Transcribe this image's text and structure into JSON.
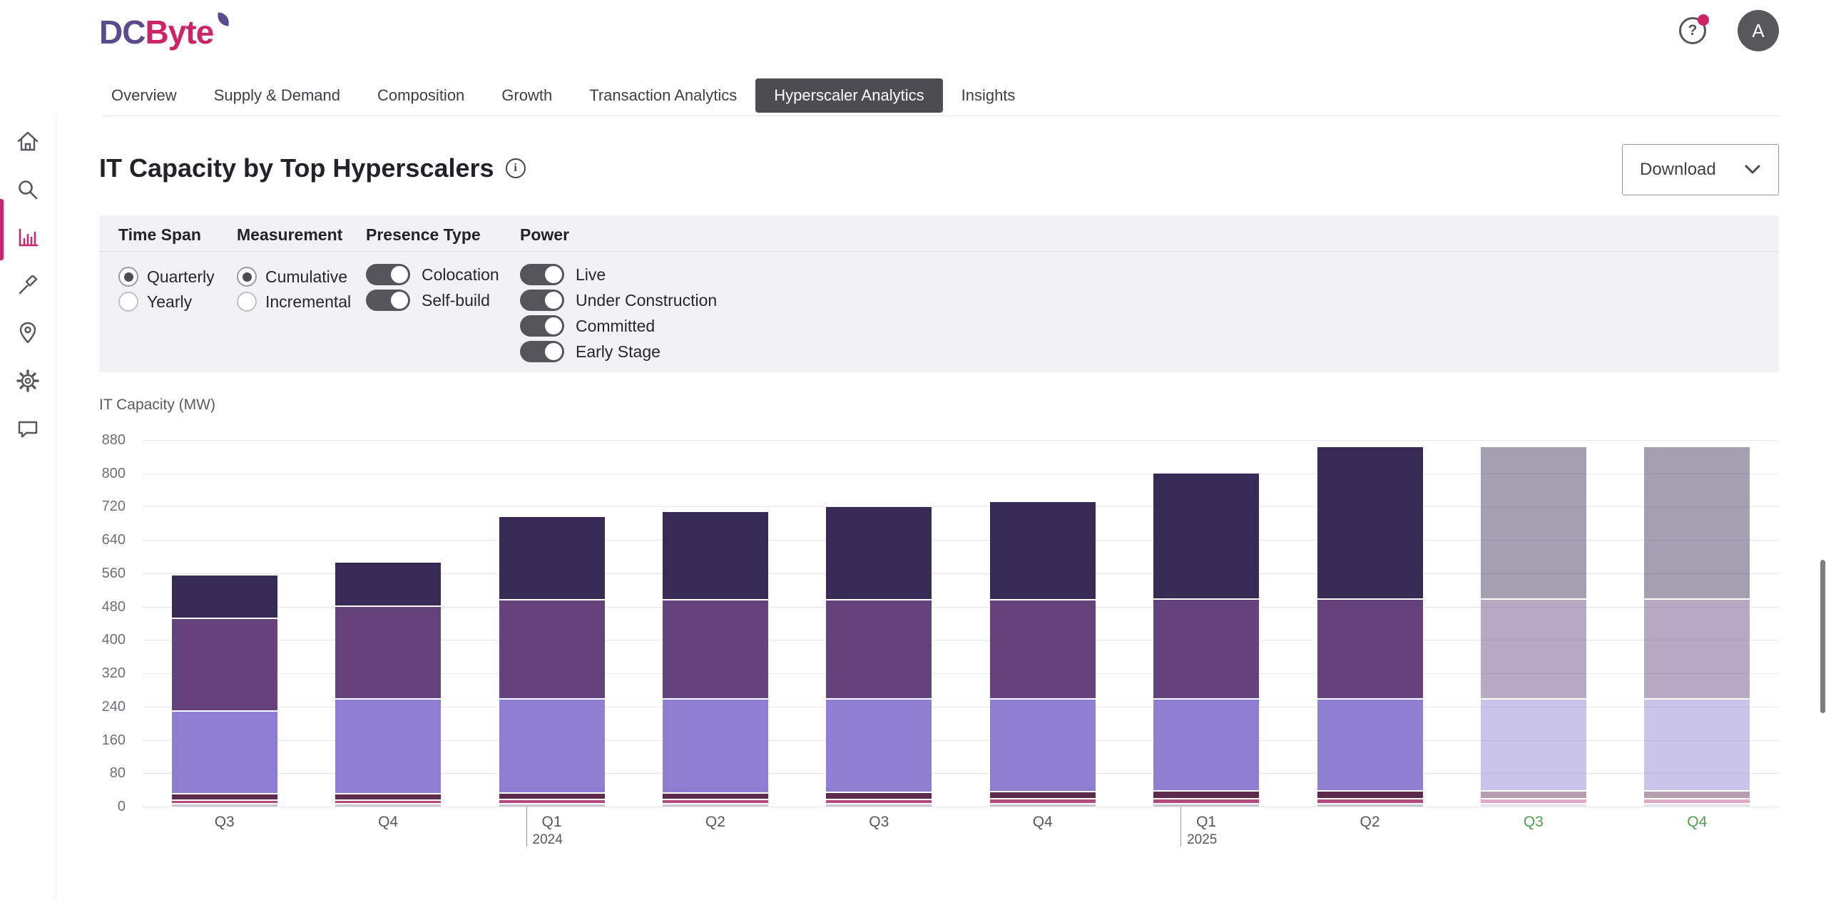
{
  "brand": {
    "dc": "DC",
    "byte": "Byte",
    "dc_color": "#5b4a8c",
    "accent_color": "#cf2368"
  },
  "header": {
    "help_icon": "?",
    "avatar_initial": "A"
  },
  "sidebar": {
    "active_color": "#c22a6c",
    "items": [
      {
        "icon": "home-icon",
        "active": false
      },
      {
        "icon": "search-icon",
        "active": false
      },
      {
        "icon": "bar-chart-icon",
        "active": true
      },
      {
        "icon": "hammer-icon",
        "active": false
      },
      {
        "icon": "map-pin-icon",
        "active": false
      },
      {
        "icon": "gear-icon",
        "active": false
      },
      {
        "icon": "chat-icon",
        "active": false
      }
    ]
  },
  "nav": {
    "tabs": [
      {
        "label": "Overview",
        "active": false
      },
      {
        "label": "Supply & Demand",
        "active": false
      },
      {
        "label": "Composition",
        "active": false
      },
      {
        "label": "Growth",
        "active": false
      },
      {
        "label": "Transaction Analytics",
        "active": false
      },
      {
        "label": "Hyperscaler Analytics",
        "active": true
      },
      {
        "label": "Insights",
        "active": false
      }
    ]
  },
  "page": {
    "title": "IT Capacity by Top Hyperscalers",
    "info_icon": "i",
    "download_label": "Download"
  },
  "filters": {
    "groups": [
      {
        "label": "Time Span",
        "type": "radio",
        "options": [
          {
            "label": "Quarterly",
            "selected": true
          },
          {
            "label": "Yearly",
            "selected": false
          }
        ]
      },
      {
        "label": "Measurement",
        "type": "radio",
        "options": [
          {
            "label": "Cumulative",
            "selected": true
          },
          {
            "label": "Incremental",
            "selected": false
          }
        ]
      },
      {
        "label": "Presence Type",
        "type": "toggle",
        "options": [
          {
            "label": "Colocation",
            "on": true
          },
          {
            "label": "Self-build",
            "on": true
          }
        ]
      },
      {
        "label": "Power",
        "type": "toggle",
        "options": [
          {
            "label": "Live",
            "on": true
          },
          {
            "label": "Under Construction",
            "on": true
          },
          {
            "label": "Committed",
            "on": true
          },
          {
            "label": "Early Stage",
            "on": true
          }
        ]
      }
    ]
  },
  "chart_data": {
    "type": "bar",
    "stacked": true,
    "title": "IT Capacity by Top Hyperscalers",
    "ylabel": "IT Capacity (MW)",
    "ylim": [
      0,
      880
    ],
    "ytick_interval": 80,
    "yticks": [
      880,
      800,
      720,
      640,
      560,
      480,
      400,
      320,
      240,
      160,
      80,
      0
    ],
    "grid": true,
    "legend": false,
    "categories": [
      "Q3",
      "Q4",
      "Q1",
      "Q2",
      "Q3",
      "Q4",
      "Q1",
      "Q2",
      "Q3",
      "Q4"
    ],
    "year_markers": [
      {
        "index": 2,
        "year": "2024"
      },
      {
        "index": 6,
        "year": "2025"
      }
    ],
    "forecast_start_index": 8,
    "forecast_label_color": "#4ca04f",
    "series": [
      {
        "name": "segment-1",
        "color": "#c9c5cf",
        "values": [
          8,
          8,
          8,
          8,
          8,
          8,
          8,
          8,
          8,
          8
        ]
      },
      {
        "name": "segment-2",
        "color": "#b44a7e",
        "values": [
          10,
          10,
          11,
          11,
          11,
          12,
          12,
          12,
          12,
          12
        ]
      },
      {
        "name": "segment-3",
        "color": "#5e2b4f",
        "values": [
          15,
          15,
          16,
          16,
          17,
          17,
          19,
          19,
          19,
          19
        ]
      },
      {
        "name": "segment-4",
        "color": "#8d7ed2",
        "values": [
          198,
          228,
          226,
          226,
          225,
          224,
          222,
          222,
          222,
          222
        ]
      },
      {
        "name": "segment-5",
        "color": "#64427c",
        "values": [
          223,
          222,
          238,
          238,
          238,
          238,
          239,
          239,
          239,
          239
        ]
      },
      {
        "name": "segment-6",
        "color": "#372a54",
        "values": [
          101,
          102,
          197,
          209,
          221,
          233,
          299,
          363,
          363,
          363
        ]
      }
    ],
    "totals": [
      555,
      585,
      696,
      708,
      720,
      732,
      799,
      863,
      863,
      863
    ]
  },
  "scrollbar": {
    "visible": true
  }
}
